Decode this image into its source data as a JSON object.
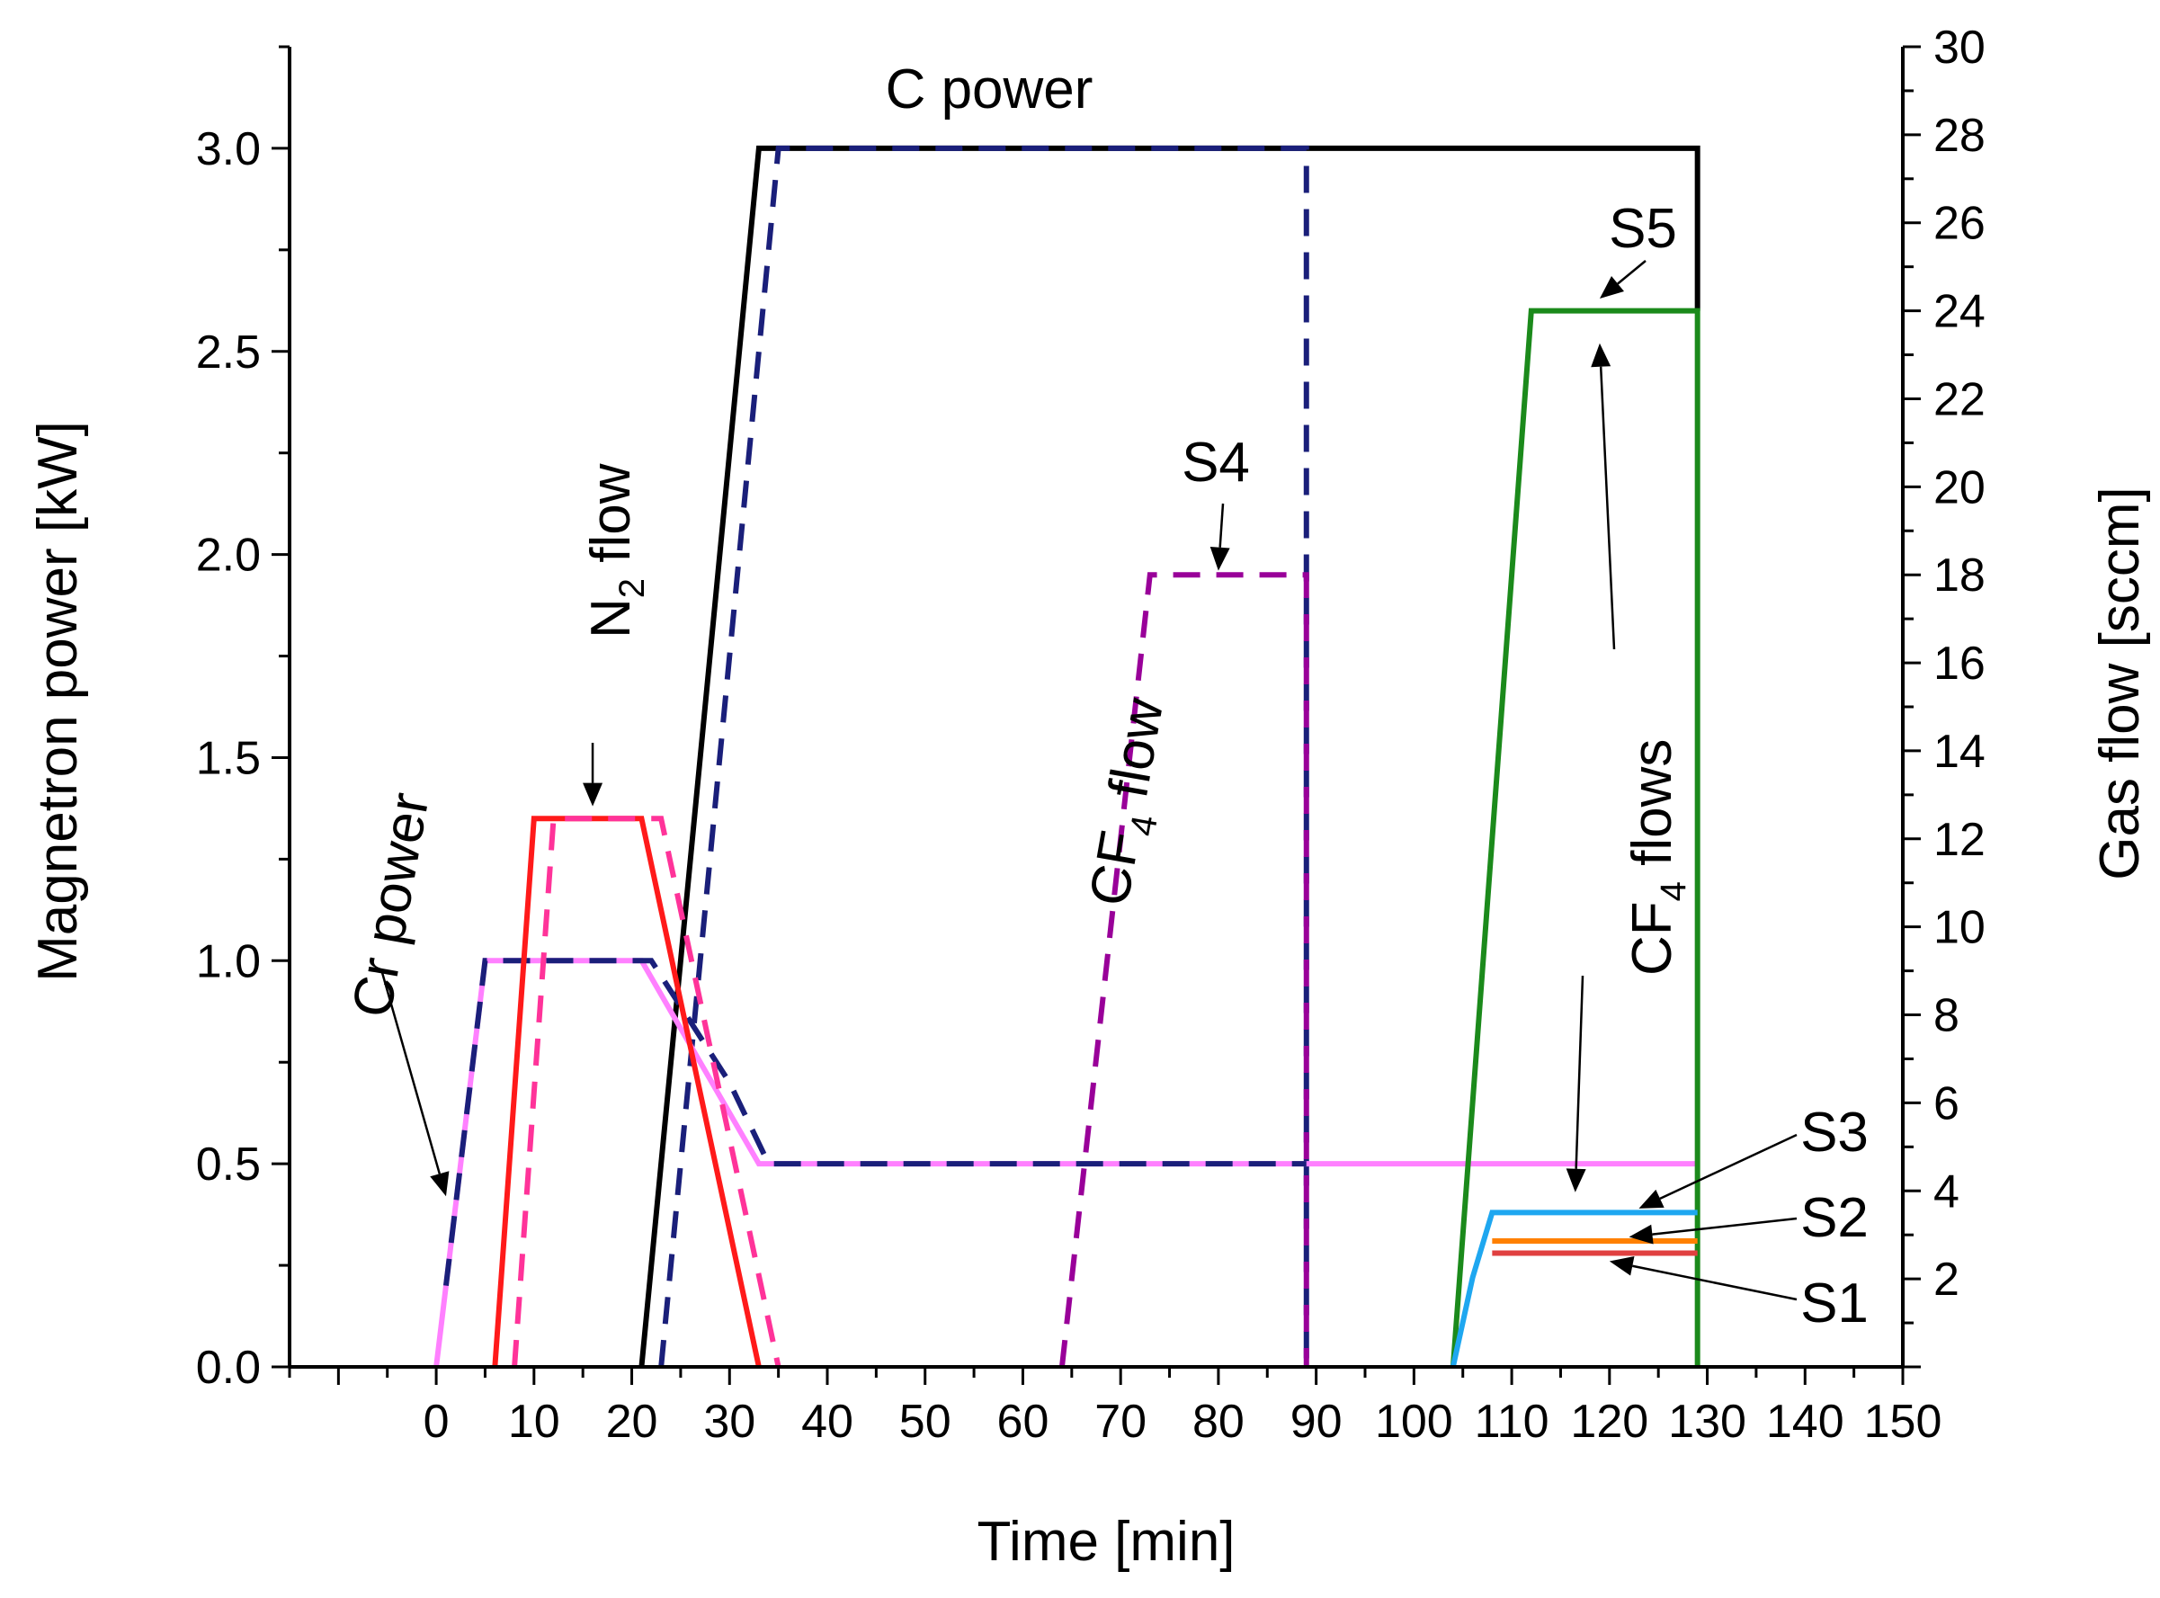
{
  "chart_data": {
    "type": "line",
    "x_axis": {
      "label": "Time [min]",
      "range": [
        -15,
        150
      ],
      "ticks": [
        0,
        10,
        20,
        30,
        40,
        50,
        60,
        70,
        80,
        90,
        100,
        110,
        120,
        130,
        140,
        150
      ],
      "minor_step": 5
    },
    "y_left": {
      "label": "Magnetron power [kW]",
      "range": [
        0,
        3.25
      ],
      "ticks": [
        "0.0",
        "0.5",
        "1.0",
        "1.5",
        "2.0",
        "2.5",
        "3.0"
      ],
      "minor_step": 0.25
    },
    "y_right": {
      "label": "Gas flow [sccm]",
      "range": [
        0,
        30
      ],
      "ticks": [
        "2",
        "4",
        "6",
        "8",
        "10",
        "12",
        "14",
        "16",
        "18",
        "20",
        "22",
        "24",
        "26",
        "28",
        "30"
      ],
      "minor_step": 1
    },
    "series": [
      {
        "name": "C power",
        "axis": "left",
        "color": "#000000",
        "dash": "solid",
        "points": [
          [
            21,
            0
          ],
          [
            33,
            3.0
          ],
          [
            129,
            3.0
          ],
          [
            129,
            2.6
          ]
        ]
      },
      {
        "name": "C power (dashed)",
        "axis": "left",
        "color": "#1a1f7a",
        "dash": "dashed",
        "points": [
          [
            23,
            0
          ],
          [
            35,
            3.0
          ],
          [
            89,
            3.0
          ],
          [
            89,
            0
          ]
        ]
      },
      {
        "name": "Cr power",
        "axis": "left",
        "color": "#ff80ff",
        "dash": "solid",
        "points": [
          [
            0,
            0
          ],
          [
            5,
            1.0
          ],
          [
            21,
            1.0
          ],
          [
            33,
            0.5
          ],
          [
            129,
            0.5
          ]
        ]
      },
      {
        "name": "Cr power (dashed)",
        "axis": "left",
        "color": "#1a1f7a",
        "dash": "dashed",
        "points": [
          [
            1,
            0.2
          ],
          [
            5,
            1.0
          ],
          [
            22,
            1.0
          ],
          [
            26,
            0.85
          ],
          [
            30,
            0.7
          ],
          [
            34,
            0.5
          ],
          [
            89,
            0.5
          ]
        ]
      },
      {
        "name": "N2 flow",
        "axis": "left",
        "color": "#ff1a1a",
        "dash": "solid",
        "points": [
          [
            6,
            0
          ],
          [
            10,
            1.35
          ],
          [
            21,
            1.35
          ],
          [
            33,
            0
          ]
        ]
      },
      {
        "name": "N2 flow (dashed)",
        "axis": "left",
        "color": "#ff3399",
        "dash": "dashed",
        "points": [
          [
            8,
            0
          ],
          [
            12,
            1.35
          ],
          [
            23,
            1.35
          ],
          [
            35,
            0
          ]
        ]
      },
      {
        "name": "CF4 flow S4",
        "axis": "left",
        "color": "#990099",
        "dash": "dashed",
        "points": [
          [
            64,
            0
          ],
          [
            73,
            1.95
          ],
          [
            89,
            1.95
          ],
          [
            89,
            0
          ]
        ]
      },
      {
        "name": "S5",
        "axis": "left",
        "color": "#1b8a1b",
        "dash": "solid",
        "points": [
          [
            104,
            0
          ],
          [
            112,
            2.6
          ],
          [
            129,
            2.6
          ],
          [
            129,
            0
          ]
        ]
      },
      {
        "name": "S3",
        "axis": "left",
        "color": "#1ea7f0",
        "dash": "solid",
        "points": [
          [
            104,
            0
          ],
          [
            106,
            0.22
          ],
          [
            108,
            0.38
          ],
          [
            129,
            0.38
          ]
        ]
      },
      {
        "name": "S2",
        "axis": "left",
        "color": "#ff8000",
        "dash": "solid",
        "points": [
          [
            108,
            0.31
          ],
          [
            129,
            0.31
          ]
        ]
      },
      {
        "name": "S1",
        "axis": "left",
        "color": "#e04040",
        "dash": "solid",
        "points": [
          [
            108,
            0.28
          ],
          [
            129,
            0.28
          ]
        ]
      }
    ],
    "annotations": {
      "c_power": "C power",
      "cr_power": "Cr power",
      "n2_flow_pre": "N",
      "n2_flow_sub": "2",
      "n2_flow_post": " flow",
      "cf4_flow_pre": "CF",
      "cf4_flow_sub": "4",
      "cf4_flow_post": " flow",
      "cf4_flows_pre": "CF",
      "cf4_flows_sub": "4",
      "cf4_flows_post": " flows",
      "s1": "S1",
      "s2": "S2",
      "s3": "S3",
      "s4": "S4",
      "s5": "S5"
    }
  }
}
